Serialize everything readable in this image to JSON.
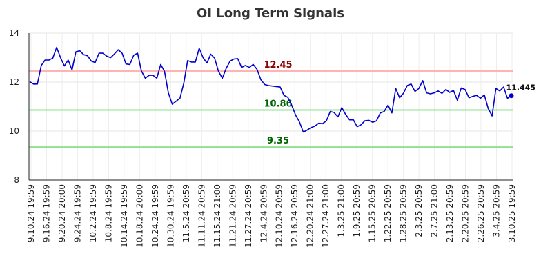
{
  "chart_data": {
    "type": "line",
    "title": "OI Long Term Signals",
    "xlabel": "",
    "ylabel": "",
    "ylim": [
      8,
      14
    ],
    "yticks": [
      8,
      10,
      12,
      14
    ],
    "grid": true,
    "x_tick_labels": [
      "9.10.24 19:59",
      "9.16.24 19:59",
      "9.20.24 20:00",
      "9.24.24 19:59",
      "10.2.24 19:59",
      "10.8.24 19:59",
      "10.14.24 19:59",
      "10.18.24 20:00",
      "10.24.24 19:59",
      "10.30.24 19:59",
      "11.5.24 20:59",
      "11.11.24 20:59",
      "11.15.24 21:00",
      "11.21.24 20:59",
      "11.27.24 20:59",
      "12.4.24 20:59",
      "12.10.24 20:59",
      "12.16.24 20:59",
      "12.20.24 21:00",
      "12.27.24 21:00",
      "1.3.25 21:00",
      "1.9.25 20:59",
      "1.15.25 20:59",
      "1.22.25 20:59",
      "1.28.25 20:59",
      "2.3.25 20:59",
      "2.7.25 21:00",
      "2.13.25 20:59",
      "2.20.25 20:59",
      "2.26.25 20:59",
      "3.4.25 20:59",
      "3.10.25 19:59"
    ],
    "series": [
      {
        "color": "#0000cc",
        "values": [
          12.02,
          11.92,
          11.92,
          12.68,
          12.9,
          12.9,
          12.98,
          13.42,
          13.0,
          12.66,
          12.9,
          12.5,
          13.24,
          13.28,
          13.12,
          13.08,
          12.86,
          12.8,
          13.18,
          13.18,
          13.06,
          13.0,
          13.15,
          13.32,
          13.18,
          12.74,
          12.72,
          13.1,
          13.18,
          12.46,
          12.16,
          12.28,
          12.28,
          12.16,
          12.72,
          12.44,
          11.56,
          11.1,
          11.22,
          11.34,
          11.96,
          12.88,
          12.82,
          12.82,
          13.38,
          13.0,
          12.78,
          13.14,
          12.98,
          12.44,
          12.16,
          12.56,
          12.86,
          12.94,
          12.96,
          12.6,
          12.68,
          12.6,
          12.72,
          12.52,
          12.1,
          11.9,
          11.86,
          11.84,
          11.82,
          11.8,
          11.46,
          11.38,
          11.06,
          10.66,
          10.38,
          9.96,
          10.04,
          10.14,
          10.2,
          10.32,
          10.3,
          10.42,
          10.8,
          10.76,
          10.58,
          10.96,
          10.68,
          10.46,
          10.46,
          10.18,
          10.26,
          10.42,
          10.44,
          10.36,
          10.42,
          10.74,
          10.8,
          11.06,
          10.74,
          11.74,
          11.36,
          11.54,
          11.86,
          11.92,
          11.62,
          11.74,
          12.06,
          11.56,
          11.52,
          11.56,
          11.64,
          11.54,
          11.7,
          11.58,
          11.66,
          11.26,
          11.76,
          11.7,
          11.36,
          11.42,
          11.46,
          11.34,
          11.48,
          10.92,
          10.62,
          11.74,
          11.64,
          11.8,
          11.34,
          11.445
        ]
      }
    ],
    "reference_lines": [
      {
        "value": 12.45,
        "label": "12.45",
        "line_color": "#ffb3b3",
        "label_color": "#8b0000"
      },
      {
        "value": 10.86,
        "label": "10.86",
        "line_color": "#90e090",
        "label_color": "#006400"
      },
      {
        "value": 9.35,
        "label": "9.35",
        "line_color": "#90e090",
        "label_color": "#006400"
      }
    ],
    "last_value": {
      "value": 11.445,
      "label": "11.445"
    }
  }
}
